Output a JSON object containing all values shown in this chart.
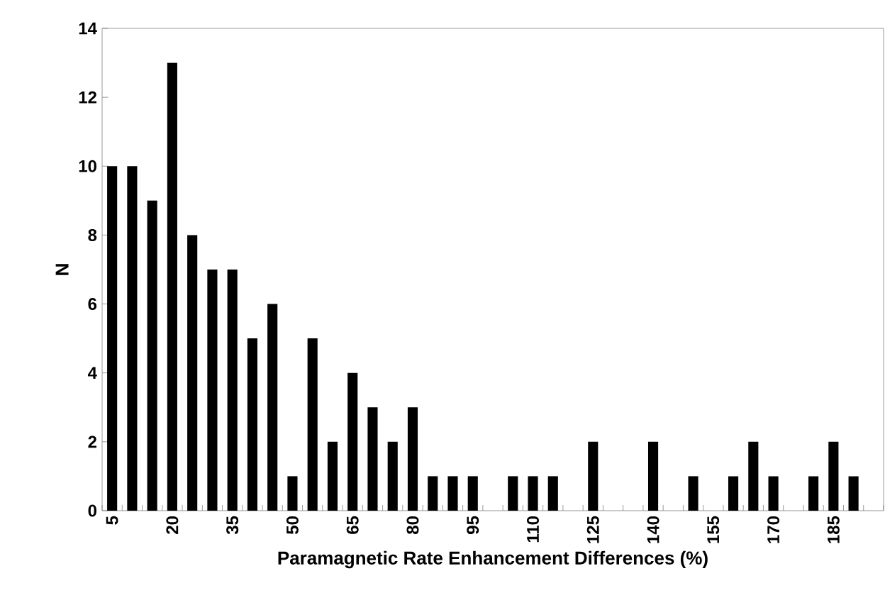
{
  "chart_data": {
    "type": "bar",
    "xlabel": "Paramagnetic Rate Enhancement Differences (%)",
    "ylabel": "N",
    "categories": [
      "5",
      null,
      null,
      "20",
      null,
      null,
      "35",
      null,
      null,
      "50",
      null,
      null,
      "65",
      null,
      null,
      "80",
      null,
      null,
      "95",
      null,
      null,
      "110",
      null,
      null,
      "125",
      null,
      null,
      "140",
      null,
      null,
      "155",
      null,
      null,
      "170",
      null,
      null,
      "185",
      null,
      null
    ],
    "values": [
      10,
      10,
      9,
      13,
      8,
      7,
      7,
      5,
      6,
      1,
      5,
      2,
      4,
      3,
      2,
      3,
      1,
      1,
      1,
      0,
      1,
      1,
      1,
      0,
      2,
      0,
      0,
      2,
      0,
      1,
      0,
      1,
      2,
      1,
      0,
      1,
      2,
      1,
      0
    ],
    "color": "#000000",
    "ylim": [
      0,
      14
    ],
    "yticks": [
      0,
      2,
      4,
      6,
      8,
      10,
      12,
      14
    ],
    "grid": false
  }
}
